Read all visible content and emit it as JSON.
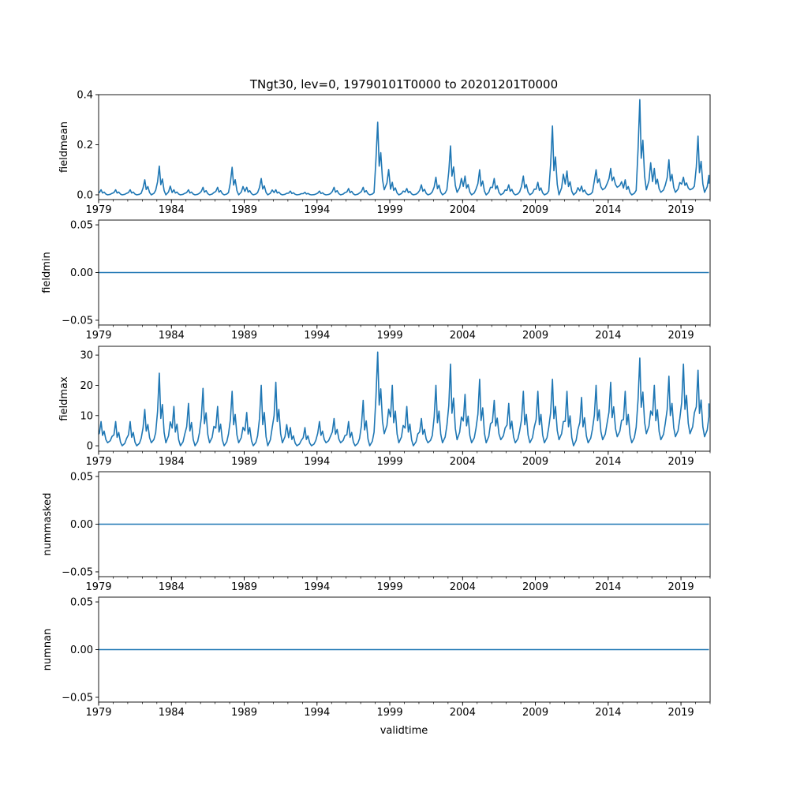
{
  "title": "TNgt30, lev=0, 19790101T0000 to 20201201T0000",
  "xlabel": "validtime",
  "line_color": "#1f77b4",
  "chart_data": [
    {
      "type": "line",
      "ylabel": "fieldmean",
      "xlim": [
        1979.0,
        2021.0
      ],
      "ylim": [
        -0.019,
        0.4
      ],
      "yticks": [
        0.0,
        0.2,
        0.4
      ],
      "ytick_labels": [
        "0.0",
        "0.2",
        "0.4"
      ],
      "x_start": 1979,
      "x_end": 2020.92,
      "end_value": 0.045,
      "annual_peaks": [
        0.02,
        0.02,
        0.02,
        0.06,
        0.115,
        0.02,
        0.02,
        0.03,
        0.03,
        0.11,
        0.03,
        0.065,
        0.02,
        0.015,
        0.01,
        0.015,
        0.03,
        0.025,
        0.03,
        0.29,
        0.05,
        0.025,
        0.04,
        0.07,
        0.195,
        0.075,
        0.1,
        0.065,
        0.04,
        0.075,
        0.05,
        0.275,
        0.095,
        0.035,
        0.1,
        0.105,
        0.06,
        0.38,
        0.105,
        0.14,
        0.07,
        0.235
      ],
      "annual_troughs": [
        0,
        0,
        0,
        0,
        0,
        0,
        0,
        0,
        0,
        0,
        0,
        0,
        0,
        0,
        0,
        0,
        0,
        0,
        0,
        0.02,
        0,
        0,
        0,
        0,
        0.01,
        0,
        0,
        0,
        0,
        0,
        0,
        0,
        0,
        0,
        0.02,
        0.03,
        0,
        0.02,
        0.01,
        0.01,
        0.02,
        0.01
      ]
    },
    {
      "type": "line",
      "ylabel": "fieldmin",
      "xlim": [
        1979.0,
        2021.0
      ],
      "ylim": [
        -0.055,
        0.055
      ],
      "yticks": [
        -0.05,
        0.0,
        0.05
      ],
      "ytick_labels": [
        "−0.05",
        "0.00",
        "0.05"
      ],
      "constant_value": 0.0
    },
    {
      "type": "line",
      "ylabel": "fieldmax",
      "xlim": [
        1979.0,
        2021.0
      ],
      "ylim": [
        -1.8,
        32.9
      ],
      "yticks": [
        0,
        10,
        20,
        30
      ],
      "ytick_labels": [
        "0",
        "10",
        "20",
        "30"
      ],
      "x_start": 1979,
      "x_end": 2020.92,
      "end_value": 14,
      "annual_peaks": [
        8,
        8,
        8,
        12,
        24,
        13,
        14,
        19,
        13,
        18,
        11,
        20,
        21,
        6,
        6,
        8,
        9,
        8,
        15,
        31,
        20,
        13,
        9,
        20,
        27,
        17,
        22,
        15,
        14,
        18,
        18,
        22,
        18,
        16,
        20,
        21,
        18,
        29,
        20,
        23,
        27,
        25
      ],
      "annual_troughs": [
        1,
        0,
        0,
        1,
        1,
        0,
        0,
        1,
        0,
        1,
        0,
        0,
        1,
        0,
        0,
        1,
        1,
        0,
        0,
        4,
        1,
        0,
        1,
        1,
        2,
        1,
        1,
        2,
        1,
        1,
        1,
        2,
        0,
        1,
        2,
        3,
        1,
        4,
        2,
        3,
        4,
        3
      ]
    },
    {
      "type": "line",
      "ylabel": "nummasked",
      "xlim": [
        1979.0,
        2021.0
      ],
      "ylim": [
        -0.055,
        0.055
      ],
      "yticks": [
        -0.05,
        0.0,
        0.05
      ],
      "ytick_labels": [
        "−0.05",
        "0.00",
        "0.05"
      ],
      "constant_value": 0.0
    },
    {
      "type": "line",
      "ylabel": "numnan",
      "xlim": [
        1979.0,
        2021.0
      ],
      "ylim": [
        -0.055,
        0.055
      ],
      "yticks": [
        -0.05,
        0.0,
        0.05
      ],
      "ytick_labels": [
        "−0.05",
        "0.00",
        "0.05"
      ],
      "constant_value": 0.0
    }
  ],
  "xticks": [
    1979,
    1984,
    1989,
    1994,
    1999,
    2004,
    2009,
    2014,
    2019
  ],
  "xtick_labels": [
    "1979",
    "1984",
    "1989",
    "1994",
    "1999",
    "2004",
    "2009",
    "2014",
    "2019"
  ]
}
